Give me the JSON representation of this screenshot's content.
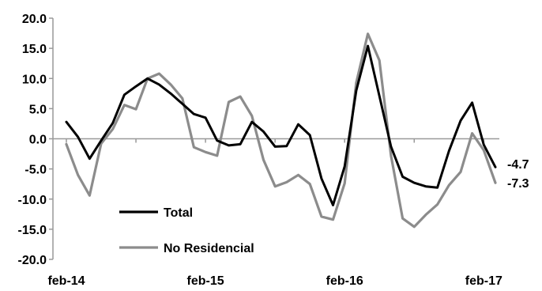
{
  "chart_data": {
    "type": "line",
    "title": "",
    "xlabel": "",
    "ylabel": "",
    "ylim": [
      -20,
      20
    ],
    "yticks": [
      "20.0",
      "15.0",
      "10.0",
      "5.0",
      "0.0",
      "-5.0",
      "-10.0",
      "-15.0",
      "-20.0"
    ],
    "x_tick_labels": [
      "feb-14",
      "feb-15",
      "feb-16",
      "feb-17"
    ],
    "x_tick_index": [
      0,
      12,
      24,
      36
    ],
    "legend_position": "bottom-left",
    "series": [
      {
        "name": "Total",
        "color": "#000000",
        "values": [
          2.8,
          0.3,
          -3.3,
          -0.3,
          2.6,
          7.3,
          8.7,
          10.0,
          9.0,
          7.5,
          5.8,
          4.1,
          3.5,
          -0.3,
          -1.1,
          -0.9,
          2.8,
          1.2,
          -1.3,
          -1.2,
          2.4,
          0.6,
          -6.6,
          -11.0,
          -4.6,
          8.0,
          15.4,
          7.1,
          -1.3,
          -6.3,
          -7.3,
          -7.9,
          -8.1,
          -2.0,
          3.0,
          6.0,
          -1.0,
          -4.7
        ],
        "end_label": "-4.7"
      },
      {
        "name": "No Residencial",
        "color": "#8c8c8c",
        "values": [
          -0.9,
          -6.0,
          -9.4,
          -0.8,
          1.6,
          5.6,
          4.9,
          10.0,
          10.8,
          9.0,
          6.7,
          -1.4,
          -2.2,
          -2.8,
          6.1,
          7.0,
          3.8,
          -3.5,
          -7.9,
          -7.2,
          -6.0,
          -7.5,
          -12.9,
          -13.4,
          -7.4,
          9.3,
          17.4,
          13.0,
          -2.8,
          -13.2,
          -14.6,
          -12.6,
          -10.9,
          -7.7,
          -5.5,
          0.9,
          -1.9,
          -7.3
        ],
        "end_label": "-7.3"
      }
    ]
  }
}
